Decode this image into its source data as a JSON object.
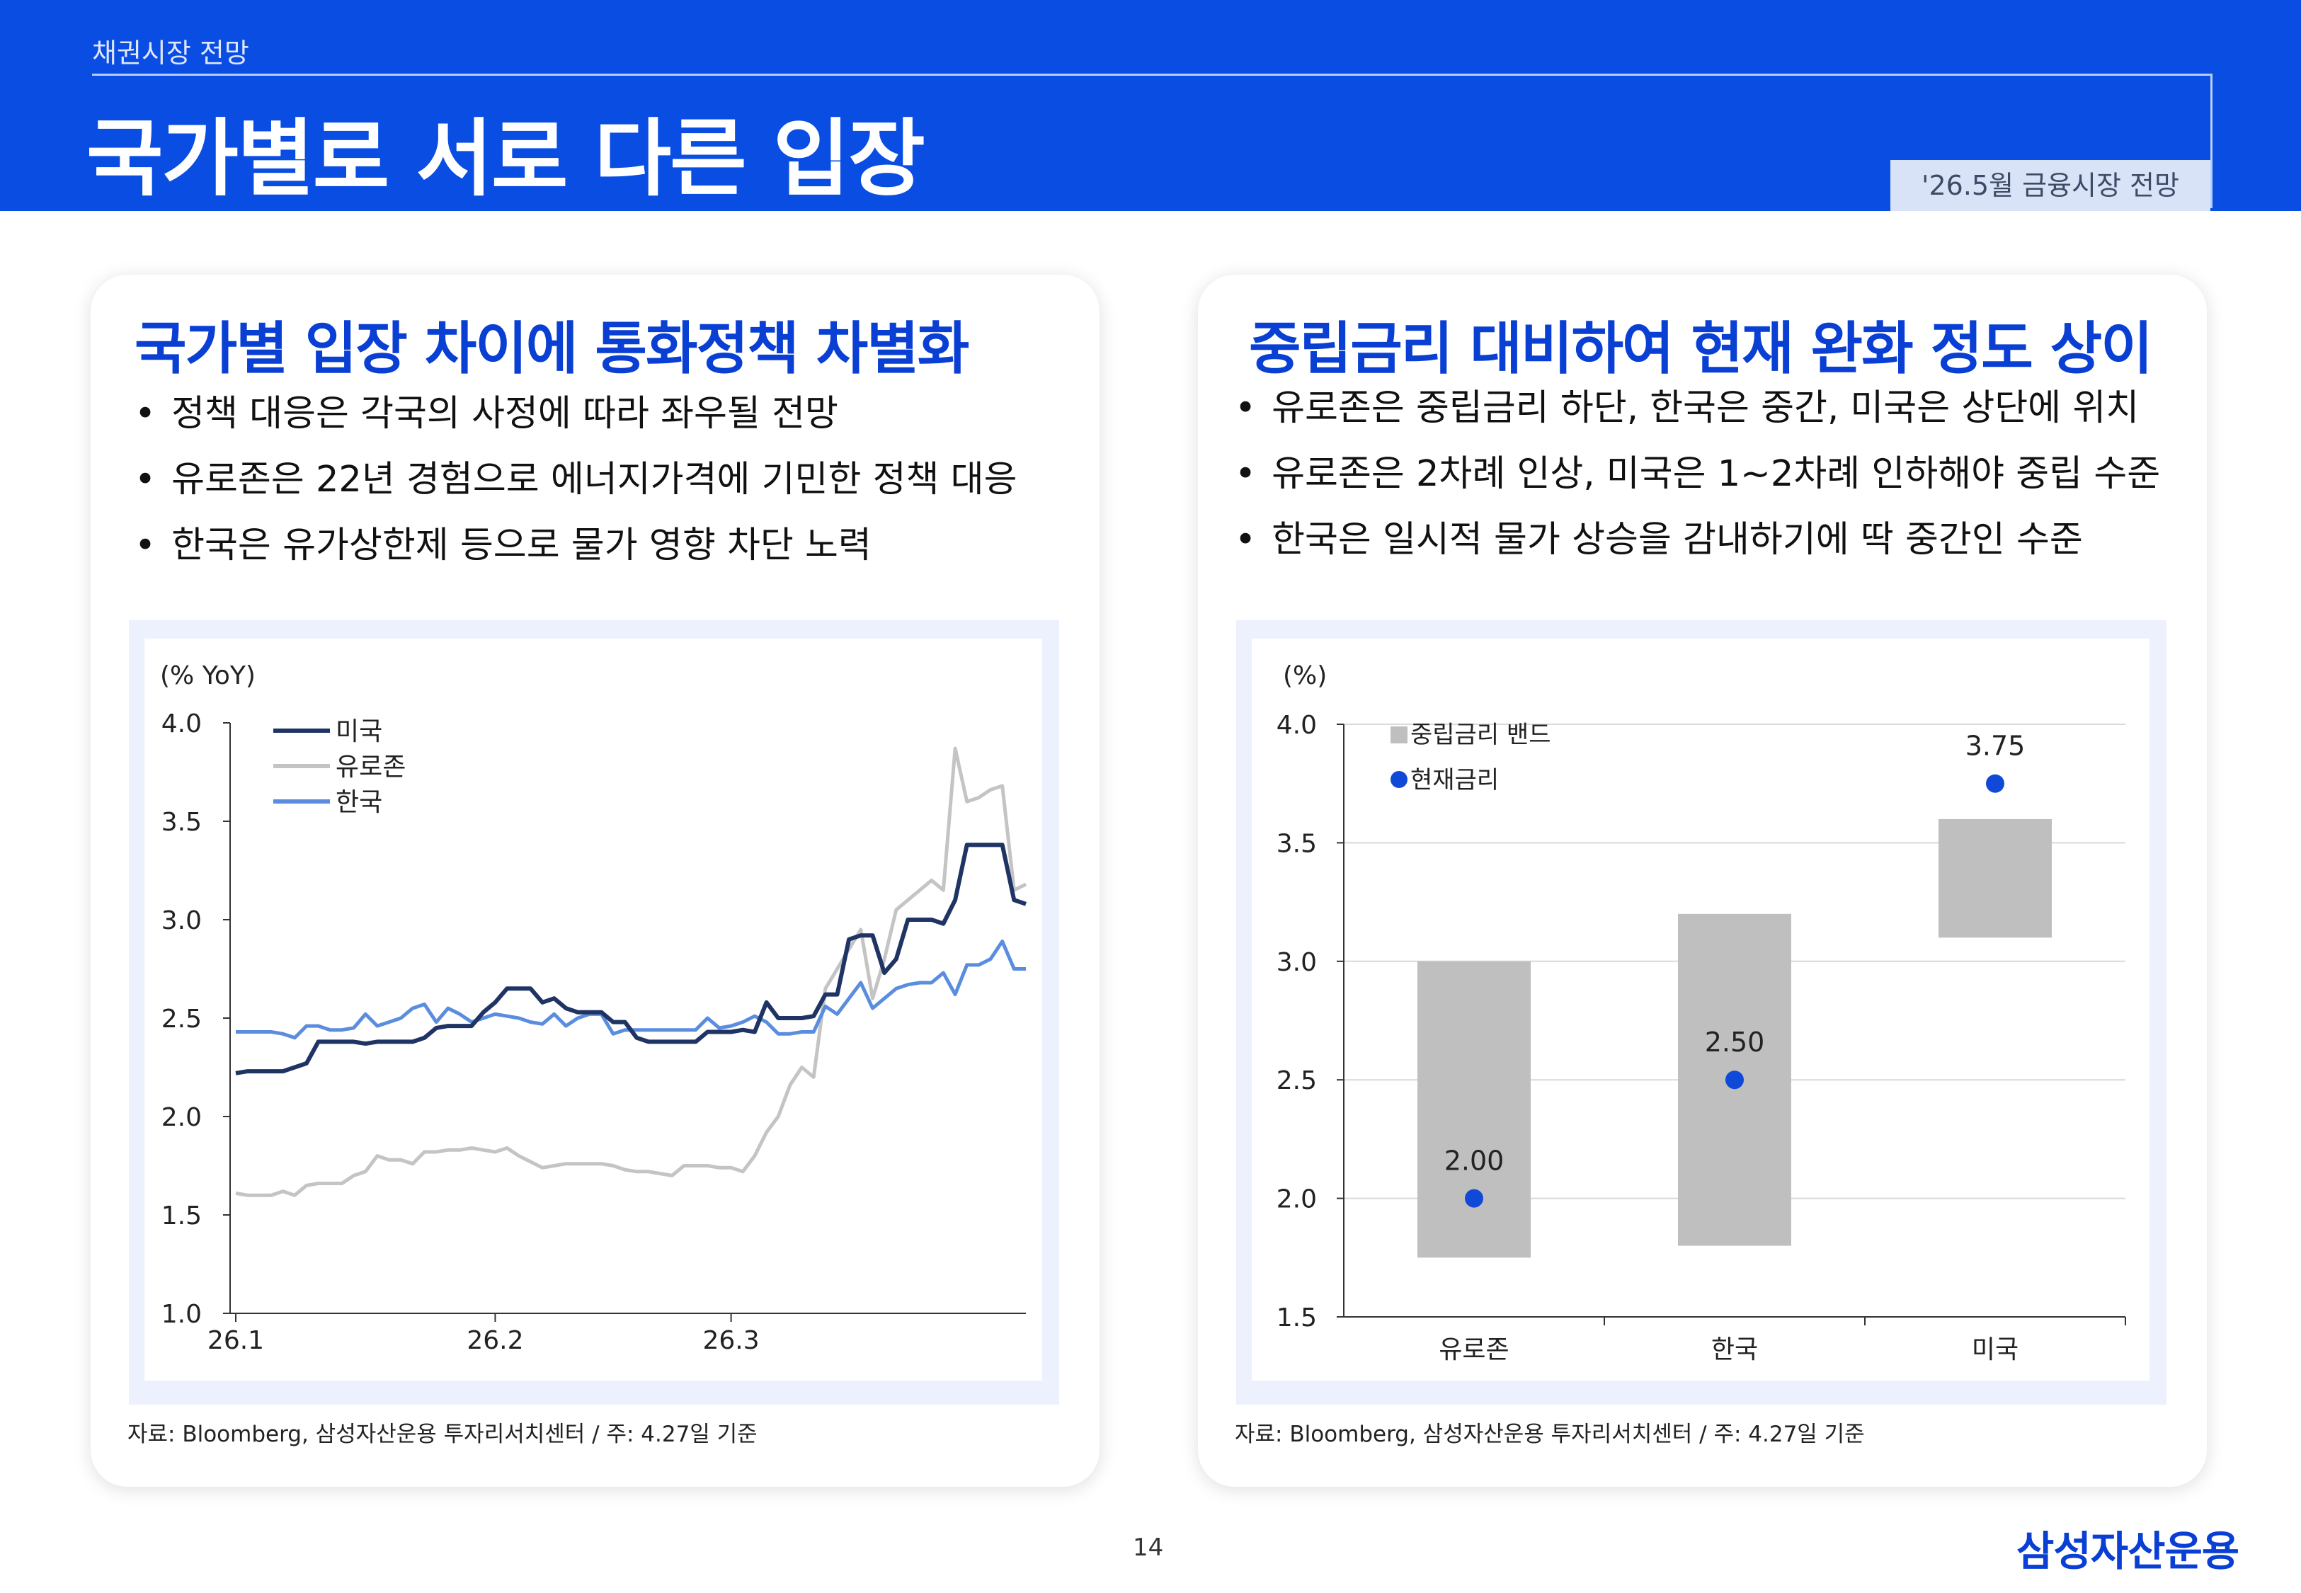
{
  "header": {
    "breadcrumb": "채권시장 전망",
    "title": "국가별로 서로 다른 입장",
    "badge": "'26.5월 금융시장 전망"
  },
  "left": {
    "title": "국가별 입장 차이에 통화정책 차별화",
    "bullets": [
      "정책 대응은 각국의 사정에 따라 좌우될 전망",
      "유로존은 22년 경험으로 에너지가격에 기민한 정책 대응",
      "한국은 유가상한제 등으로 물가 영향 차단 노력"
    ],
    "source": "자료: Bloomberg, 삼성자산운용 투자리서치센터 / 주: 4.27일 기준"
  },
  "right": {
    "title": "중립금리 대비하여 현재 완화 정도 상이",
    "bullets": [
      "유로존은 중립금리 하단, 한국은 중간, 미국은 상단에 위치",
      "유로존은 2차례 인상, 미국은 1~2차례 인하해야 중립 수준",
      "한국은 일시적 물가 상승을 감내하기에 딱 중간인 수준"
    ],
    "source": "자료: Bloomberg, 삼성자산운용 투자리서치센터 / 주: 4.27일 기준"
  },
  "footer": {
    "page": "14",
    "logo": "삼성자산운용"
  },
  "chart_data": [
    {
      "type": "line",
      "unit_label": "(% YoY)",
      "ylim": [
        1.0,
        4.0
      ],
      "yticks": [
        "1.0",
        "1.5",
        "2.0",
        "2.5",
        "3.0",
        "3.5",
        "4.0"
      ],
      "xticks": [
        {
          "label": "26.1",
          "index": 0
        },
        {
          "label": "26.2",
          "index": 22
        },
        {
          "label": "26.3",
          "index": 42
        }
      ],
      "legend_position": "top-left",
      "grid": false,
      "series": [
        {
          "name": "미국",
          "color": "#1f3464",
          "values": [
            2.22,
            2.23,
            2.23,
            2.23,
            2.23,
            2.25,
            2.27,
            2.38,
            2.38,
            2.38,
            2.38,
            2.37,
            2.38,
            2.38,
            2.38,
            2.38,
            2.4,
            2.45,
            2.46,
            2.46,
            2.46,
            2.53,
            2.58,
            2.65,
            2.65,
            2.65,
            2.58,
            2.6,
            2.55,
            2.53,
            2.53,
            2.53,
            2.48,
            2.48,
            2.4,
            2.38,
            2.38,
            2.38,
            2.38,
            2.38,
            2.43,
            2.43,
            2.43,
            2.44,
            2.43,
            2.58,
            2.5,
            2.5,
            2.5,
            2.51,
            2.62,
            2.62,
            2.9,
            2.92,
            2.92,
            2.73,
            2.8,
            3.0,
            3.0,
            3.0,
            2.98,
            3.1,
            3.38,
            3.38,
            3.38,
            3.38,
            3.1,
            3.08
          ]
        },
        {
          "name": "유로존",
          "color": "#c4c4c4",
          "values": [
            1.61,
            1.6,
            1.6,
            1.6,
            1.62,
            1.6,
            1.65,
            1.66,
            1.66,
            1.66,
            1.7,
            1.72,
            1.8,
            1.78,
            1.78,
            1.76,
            1.82,
            1.82,
            1.83,
            1.83,
            1.84,
            1.83,
            1.82,
            1.84,
            1.8,
            1.77,
            1.74,
            1.75,
            1.76,
            1.76,
            1.76,
            1.76,
            1.75,
            1.73,
            1.72,
            1.72,
            1.71,
            1.7,
            1.75,
            1.75,
            1.75,
            1.74,
            1.74,
            1.72,
            1.8,
            1.92,
            2.0,
            2.16,
            2.25,
            2.2,
            2.65,
            2.75,
            2.85,
            2.95,
            2.6,
            2.8,
            3.05,
            3.1,
            3.15,
            3.2,
            3.15,
            3.87,
            3.6,
            3.62,
            3.66,
            3.68,
            3.15,
            3.18
          ]
        },
        {
          "name": "한국",
          "color": "#5b8ddf",
          "values": [
            2.43,
            2.43,
            2.43,
            2.43,
            2.42,
            2.4,
            2.46,
            2.46,
            2.44,
            2.44,
            2.45,
            2.52,
            2.46,
            2.48,
            2.5,
            2.55,
            2.57,
            2.48,
            2.55,
            2.52,
            2.48,
            2.5,
            2.52,
            2.51,
            2.5,
            2.48,
            2.47,
            2.52,
            2.46,
            2.5,
            2.52,
            2.52,
            2.42,
            2.44,
            2.44,
            2.44,
            2.44,
            2.44,
            2.44,
            2.44,
            2.5,
            2.45,
            2.46,
            2.48,
            2.51,
            2.48,
            2.42,
            2.42,
            2.43,
            2.43,
            2.56,
            2.52,
            2.6,
            2.68,
            2.55,
            2.6,
            2.65,
            2.67,
            2.68,
            2.68,
            2.73,
            2.62,
            2.77,
            2.77,
            2.8,
            2.89,
            2.75,
            2.75
          ]
        }
      ]
    },
    {
      "type": "bar",
      "unit_label": "(%)",
      "ylim": [
        1.5,
        4.0
      ],
      "yticks": [
        "1.5",
        "2.0",
        "2.5",
        "3.0",
        "3.5",
        "4.0"
      ],
      "categories": [
        "유로존",
        "한국",
        "미국"
      ],
      "legend_position": "top-left",
      "grid": true,
      "band": {
        "name": "중립금리 밴드",
        "color": "#bfbfbf",
        "ranges": [
          [
            1.75,
            3.0
          ],
          [
            1.8,
            3.2
          ],
          [
            3.1,
            3.6
          ]
        ]
      },
      "points": {
        "name": "현재금리",
        "color": "#1049d8",
        "values": [
          2.0,
          2.5,
          3.75
        ],
        "labels": [
          "2.00",
          "2.50",
          "3.75"
        ]
      }
    }
  ]
}
